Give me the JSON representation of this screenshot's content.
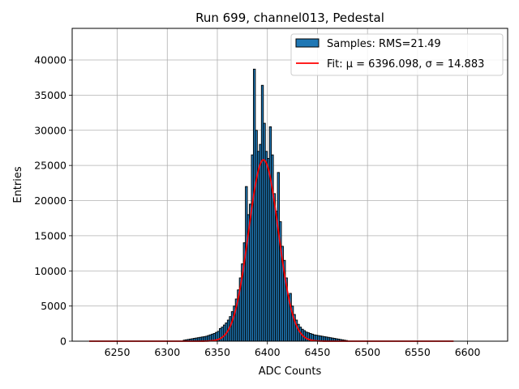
{
  "chart_data": {
    "type": "bar",
    "title": "Run 699, channel013, Pedestal",
    "xlabel": "ADC Counts",
    "ylabel": "Entries",
    "xlim": [
      6205,
      6640
    ],
    "ylim": [
      0,
      44500
    ],
    "xticks": [
      6250,
      6300,
      6350,
      6400,
      6450,
      6500,
      6550,
      6600
    ],
    "yticks": [
      0,
      5000,
      10000,
      15000,
      20000,
      25000,
      30000,
      35000,
      40000
    ],
    "grid": true,
    "legend_position": "top-right",
    "colors": {
      "bars": "#1f77b4",
      "bar_edge": "#000000",
      "fit": "#ff0000",
      "grid": "#b0b0b0"
    },
    "series": [
      {
        "name": "Samples: RMS=21.49",
        "kind": "histogram",
        "bin_width": 2,
        "bins": [
          [
            6316,
            150
          ],
          [
            6318,
            200
          ],
          [
            6320,
            250
          ],
          [
            6322,
            300
          ],
          [
            6324,
            350
          ],
          [
            6326,
            400
          ],
          [
            6328,
            450
          ],
          [
            6330,
            500
          ],
          [
            6332,
            550
          ],
          [
            6334,
            600
          ],
          [
            6336,
            650
          ],
          [
            6338,
            700
          ],
          [
            6340,
            800
          ],
          [
            6342,
            900
          ],
          [
            6344,
            1000
          ],
          [
            6346,
            1100
          ],
          [
            6348,
            1250
          ],
          [
            6350,
            1400
          ],
          [
            6352,
            1800
          ],
          [
            6354,
            2000
          ],
          [
            6356,
            2300
          ],
          [
            6358,
            2600
          ],
          [
            6360,
            3000
          ],
          [
            6362,
            3500
          ],
          [
            6364,
            4200
          ],
          [
            6366,
            5000
          ],
          [
            6368,
            6000
          ],
          [
            6370,
            7300
          ],
          [
            6372,
            9000
          ],
          [
            6374,
            11000
          ],
          [
            6376,
            14000
          ],
          [
            6378,
            22000
          ],
          [
            6380,
            18000
          ],
          [
            6382,
            19500
          ],
          [
            6384,
            26500
          ],
          [
            6386,
            38700
          ],
          [
            6388,
            30000
          ],
          [
            6390,
            27000
          ],
          [
            6392,
            28000
          ],
          [
            6394,
            36400
          ],
          [
            6396,
            31000
          ],
          [
            6398,
            27000
          ],
          [
            6400,
            26000
          ],
          [
            6402,
            30500
          ],
          [
            6404,
            26500
          ],
          [
            6406,
            21000
          ],
          [
            6408,
            18500
          ],
          [
            6410,
            24000
          ],
          [
            6412,
            17000
          ],
          [
            6414,
            13500
          ],
          [
            6416,
            11500
          ],
          [
            6418,
            9000
          ],
          [
            6420,
            6500
          ],
          [
            6422,
            6800
          ],
          [
            6424,
            5000
          ],
          [
            6426,
            3800
          ],
          [
            6428,
            3000
          ],
          [
            6430,
            2400
          ],
          [
            6432,
            2000
          ],
          [
            6434,
            1700
          ],
          [
            6436,
            1500
          ],
          [
            6438,
            1300
          ],
          [
            6440,
            1200
          ],
          [
            6442,
            1100
          ],
          [
            6444,
            1000
          ],
          [
            6446,
            900
          ],
          [
            6448,
            850
          ],
          [
            6450,
            800
          ],
          [
            6452,
            750
          ],
          [
            6454,
            700
          ],
          [
            6456,
            650
          ],
          [
            6458,
            600
          ],
          [
            6460,
            550
          ],
          [
            6462,
            500
          ],
          [
            6464,
            450
          ],
          [
            6466,
            400
          ],
          [
            6468,
            350
          ],
          [
            6470,
            300
          ],
          [
            6472,
            250
          ],
          [
            6474,
            200
          ],
          [
            6476,
            150
          ],
          [
            6478,
            100
          ]
        ]
      },
      {
        "name": "Fit: μ = 6396.098, σ = 14.883",
        "kind": "gaussian-fit",
        "mu": 6396.098,
        "sigma": 14.883,
        "amplitude": 25800,
        "x_range": [
          6222,
          6586
        ]
      }
    ]
  }
}
